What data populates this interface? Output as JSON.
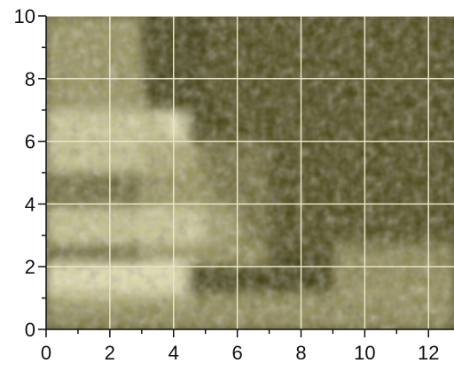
{
  "chart_data": {
    "type": "heatmap",
    "title": "",
    "xlabel": "",
    "ylabel": "",
    "xlim": [
      0,
      12.8
    ],
    "ylim": [
      0,
      10
    ],
    "x_ticks": [
      {
        "value": 0,
        "label": "0"
      },
      {
        "value": 2,
        "label": "2"
      },
      {
        "value": 4,
        "label": "4"
      },
      {
        "value": 6,
        "label": "6"
      },
      {
        "value": 8,
        "label": "8"
      },
      {
        "value": 10,
        "label": "10"
      },
      {
        "value": 12,
        "label": "12"
      }
    ],
    "y_ticks": [
      {
        "value": 0,
        "label": "0"
      },
      {
        "value": 2,
        "label": "2"
      },
      {
        "value": 4,
        "label": "4"
      },
      {
        "value": 6,
        "label": "6"
      },
      {
        "value": 8,
        "label": "8"
      },
      {
        "value": 10,
        "label": "10"
      }
    ],
    "grid": true,
    "colors": {
      "background": "#3f3b0d",
      "low": "#524b18",
      "mid": "#a59d63",
      "high": "#fbf7c4",
      "grid": "#e8e6c6",
      "axis": "#111111"
    },
    "intensity_regions": [
      {
        "region": "upper-left wedge",
        "x": [
          0,
          3
        ],
        "y": [
          6,
          10
        ],
        "level": "medium"
      },
      {
        "region": "mid-left band",
        "x": [
          0,
          4.5
        ],
        "y": [
          5,
          7
        ],
        "level": "high"
      },
      {
        "region": "diagonal edge",
        "x": [
          3,
          7
        ],
        "y": [
          2,
          6
        ],
        "level": "medium"
      },
      {
        "region": "band near y=3.3",
        "x": [
          0,
          6
        ],
        "y": [
          2.7,
          3.9
        ],
        "level": "high"
      },
      {
        "region": "band near y=1.5",
        "x": [
          0,
          4.5
        ],
        "y": [
          0.8,
          2.2
        ],
        "level": "high"
      },
      {
        "region": "bottom floor",
        "x": [
          0,
          12.8
        ],
        "y": [
          0,
          1.2
        ],
        "level": "medium"
      },
      {
        "region": "right rise",
        "x": [
          9,
          12.8
        ],
        "y": [
          1,
          2.9
        ],
        "level": "medium"
      },
      {
        "region": "upper-right void",
        "x": [
          5,
          12.8
        ],
        "y": [
          2.5,
          10
        ],
        "level": "low"
      }
    ]
  }
}
